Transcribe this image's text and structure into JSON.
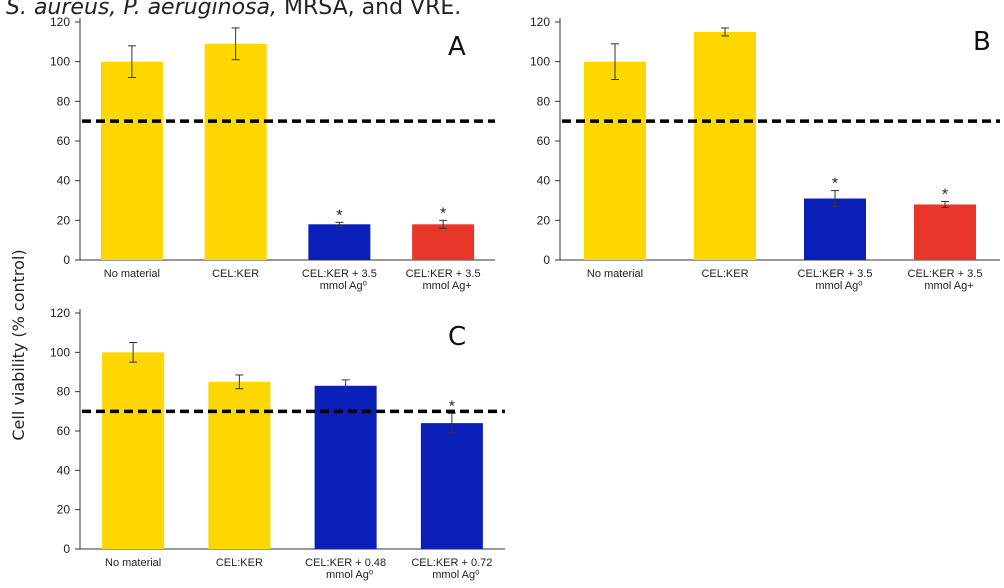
{
  "caption": {
    "italic_part": "S. aureus, P. aeruginosa,",
    "plain_part": " MRSA, and VRE."
  },
  "ylabel": "Cell viability (% control)",
  "colors": {
    "yellow": "#FFD700",
    "blue": "#0A1FB8",
    "red": "#E8372A",
    "threshold": "#000000"
  },
  "chart_data": [
    {
      "type": "bar",
      "panel_label": "A",
      "categories": [
        [
          "No material"
        ],
        [
          "CEL:KER"
        ],
        [
          "CEL:KER + 3.5",
          "mmol Ag⁰"
        ],
        [
          "CEL:KER + 3.5",
          "mmol Ag+"
        ]
      ],
      "values": [
        100,
        109,
        18,
        18
      ],
      "errors": [
        8,
        8,
        1,
        2
      ],
      "bar_colors": [
        "yellow",
        "yellow",
        "blue",
        "red"
      ],
      "significance": [
        "",
        "",
        "*",
        "*"
      ],
      "ylim": [
        0,
        120
      ],
      "yticks": [
        0,
        20,
        40,
        60,
        80,
        100,
        120
      ],
      "threshold": 70
    },
    {
      "type": "bar",
      "panel_label": "B",
      "categories": [
        [
          "No material"
        ],
        [
          "CEL:KER"
        ],
        [
          "CEL:KER + 3.5",
          "mmol Ag⁰"
        ],
        [
          "CEL:KER + 3.5",
          "mmol Ag+"
        ]
      ],
      "values": [
        100,
        115,
        31,
        28
      ],
      "errors": [
        9,
        2,
        4,
        1.5
      ],
      "bar_colors": [
        "yellow",
        "yellow",
        "blue",
        "red"
      ],
      "significance": [
        "",
        "",
        "*",
        "*"
      ],
      "ylim": [
        0,
        120
      ],
      "yticks": [
        0,
        20,
        40,
        60,
        80,
        100,
        120
      ],
      "threshold": 70
    },
    {
      "type": "bar",
      "panel_label": "C",
      "categories": [
        [
          "No material"
        ],
        [
          "CEL:KER"
        ],
        [
          "CEL:KER + 0.48",
          "mmol Ag⁰"
        ],
        [
          "CEL:KER + 0.72",
          "mmol Ag⁰"
        ]
      ],
      "values": [
        100,
        85,
        83,
        64
      ],
      "errors": [
        5,
        3.5,
        3,
        5
      ],
      "bar_colors": [
        "yellow",
        "yellow",
        "blue",
        "blue"
      ],
      "significance": [
        "",
        "",
        "",
        "*"
      ],
      "ylim": [
        0,
        120
      ],
      "yticks": [
        0,
        20,
        40,
        60,
        80,
        100,
        120
      ],
      "threshold": 70
    }
  ]
}
